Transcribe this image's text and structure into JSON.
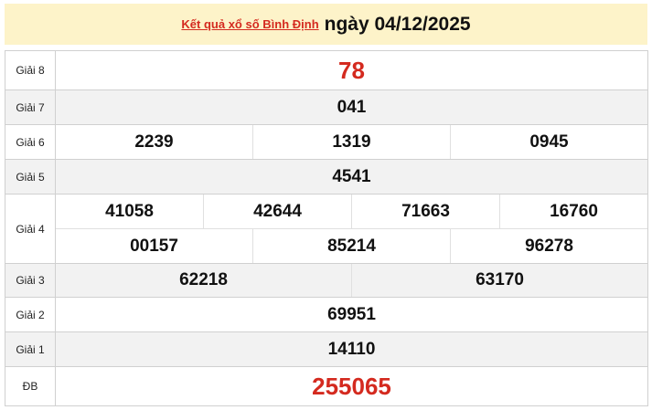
{
  "header": {
    "link": "Kết quả xổ số Bình Định",
    "date": "ngày 04/12/2025"
  },
  "colors": {
    "accent": "#d42a1f",
    "header_bg": "#fdf3c9"
  },
  "rows": [
    {
      "label": "Giải 8",
      "lines": [
        [
          "78"
        ]
      ],
      "red": true,
      "grey": false,
      "h": 43
    },
    {
      "label": "Giải 7",
      "lines": [
        [
          "041"
        ]
      ],
      "grey": true,
      "h": 38
    },
    {
      "label": "Giải 6",
      "lines": [
        [
          "2239",
          "1319",
          "0945"
        ]
      ],
      "grey": false,
      "h": 38
    },
    {
      "label": "Giải 5",
      "lines": [
        [
          "4541"
        ]
      ],
      "grey": true,
      "h": 38
    },
    {
      "label": "Giải 4",
      "lines": [
        [
          "41058",
          "42644",
          "71663",
          "16760"
        ],
        [
          "00157",
          "85214",
          "96278"
        ]
      ],
      "grey": false,
      "h": 76
    },
    {
      "label": "Giải 3",
      "lines": [
        [
          "62218",
          "63170"
        ]
      ],
      "grey": true,
      "h": 37
    },
    {
      "label": "Giải 2",
      "lines": [
        [
          "69951"
        ]
      ],
      "grey": false,
      "h": 38
    },
    {
      "label": "Giải 1",
      "lines": [
        [
          "14110"
        ]
      ],
      "grey": true,
      "h": 38
    },
    {
      "label": "ĐB",
      "lines": [
        [
          "255065"
        ]
      ],
      "red": true,
      "grey": false,
      "h": 43
    }
  ]
}
